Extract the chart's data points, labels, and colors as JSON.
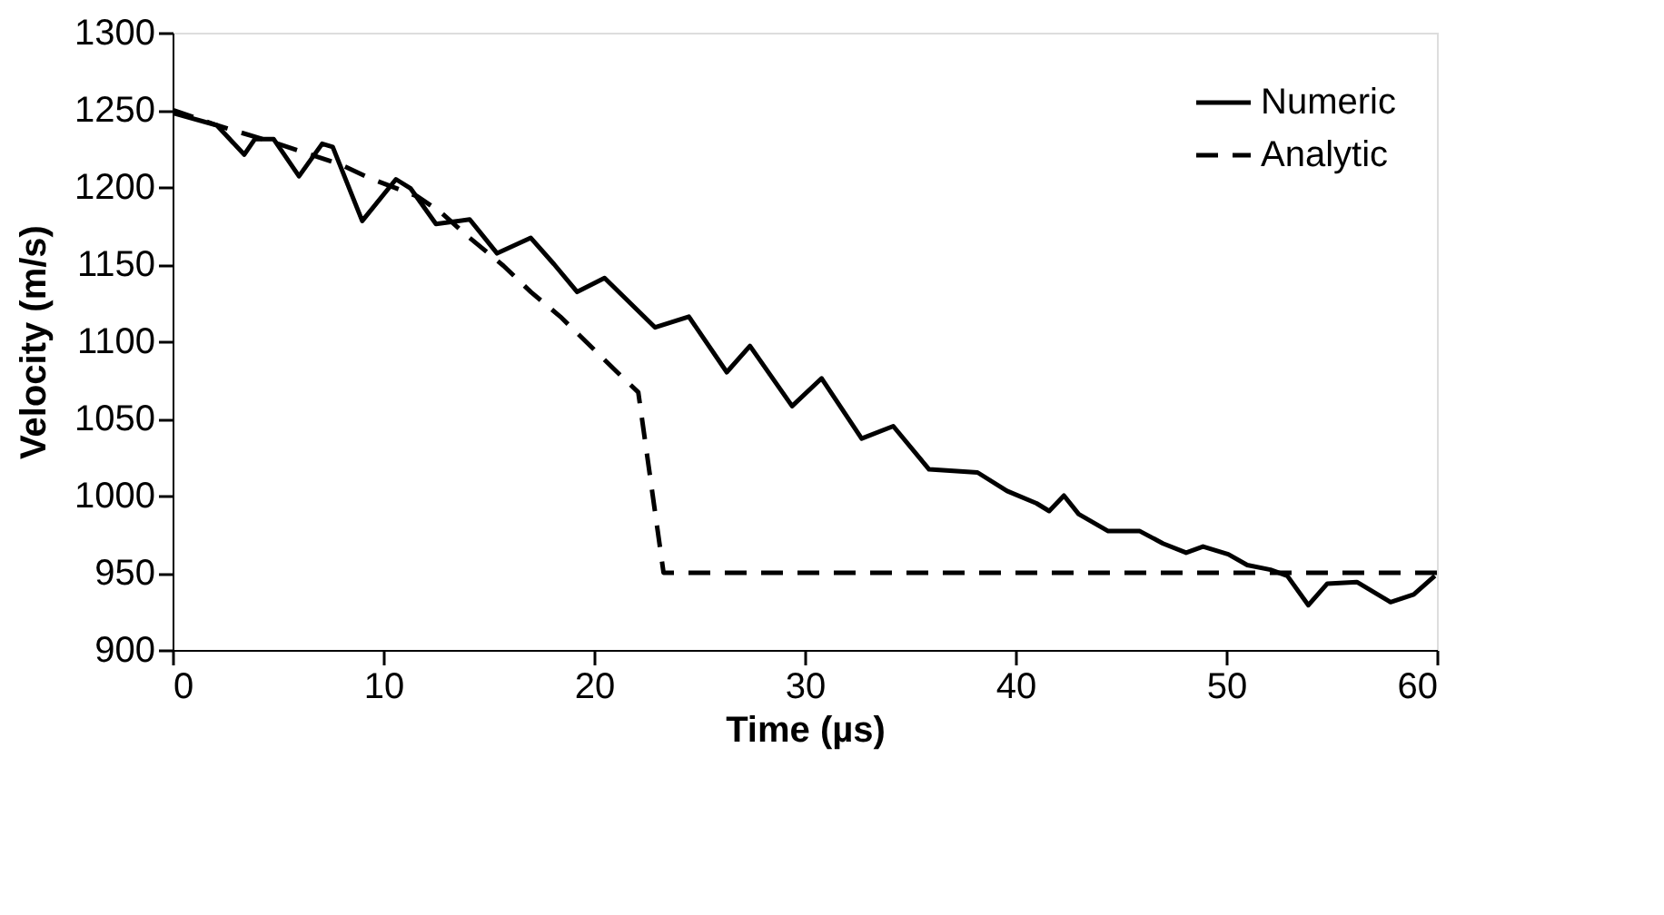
{
  "chart_data": {
    "type": "line",
    "xlabel": "Time  (µs)",
    "ylabel": "Velocity  (m/s)",
    "xlim": [
      0,
      60
    ],
    "xticks": [
      0,
      10,
      20,
      30,
      40,
      50,
      60
    ],
    "ylim": [
      900,
      1300
    ],
    "yticks": [
      900,
      950,
      1000,
      1050,
      1100,
      1150,
      1200,
      1250,
      1300
    ],
    "grid": false,
    "legend": "top right",
    "series": [
      {
        "name": "Numeric",
        "color": "#000000",
        "line_style": "solid",
        "x": [
          0,
          2.1,
          3.4,
          3.9,
          4.8,
          6.0,
          7.1,
          7.6,
          9.0,
          10.6,
          11.3,
          12.5,
          14.1,
          15.4,
          17.0,
          18.1,
          19.2,
          20.5,
          22.9,
          24.5,
          26.3,
          27.4,
          29.4,
          30.8,
          32.7,
          34.2,
          35.9,
          38.2,
          39.6,
          41.0,
          41.6,
          42.3,
          43.0,
          44.4,
          45.9,
          47.0,
          48.1,
          48.9,
          50.1,
          51.0,
          52.1,
          52.9,
          53.9,
          54.8,
          56.2,
          57.8,
          58.9,
          59.9
        ],
        "values": [
          1248,
          1240,
          1221,
          1231,
          1231,
          1207,
          1228,
          1226,
          1178,
          1205,
          1199,
          1176,
          1179,
          1157,
          1167,
          1150,
          1132,
          1141,
          1109,
          1116,
          1080,
          1097,
          1058,
          1076,
          1037,
          1045,
          1017,
          1015,
          1003,
          995,
          990,
          1000,
          988,
          977,
          977,
          969,
          963,
          967,
          962,
          955,
          952,
          948,
          929,
          943,
          944,
          931,
          936,
          948
        ]
      },
      {
        "name": "Analytic",
        "color": "#000000",
        "line_style": "dashed",
        "x": [
          0,
          2.1,
          5,
          7.9,
          9.3,
          11.6,
          12.7,
          14.1,
          15.7,
          17.0,
          18.4,
          19.6,
          21.1,
          22.1,
          23.3,
          60
        ],
        "values": [
          1250,
          1240,
          1228,
          1215,
          1206,
          1194,
          1184,
          1167,
          1149,
          1132,
          1116,
          1100,
          1080,
          1067,
          950,
          950
        ]
      }
    ]
  }
}
